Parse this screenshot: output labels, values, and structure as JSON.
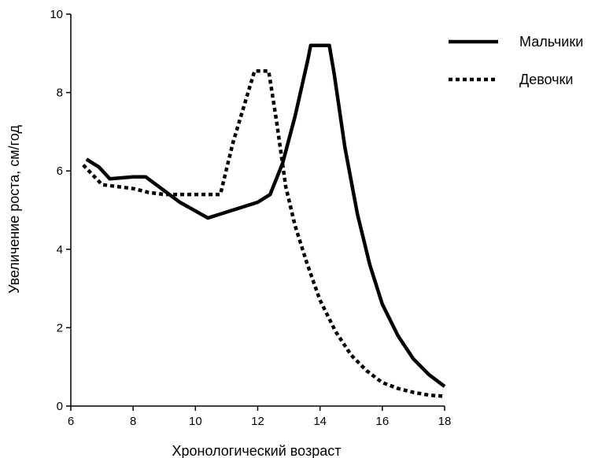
{
  "chart_data": {
    "type": "line",
    "xlabel": "Хронологический возраст",
    "ylabel": "Увеличение роста, см/год",
    "xlim": [
      6,
      18
    ],
    "ylim": [
      0,
      10
    ],
    "xticks": [
      6,
      8,
      10,
      12,
      14,
      16,
      18
    ],
    "yticks": [
      0,
      2,
      4,
      6,
      8,
      10
    ],
    "grid": false,
    "legend_position": "top-right",
    "series": [
      {
        "name": "Мальчики",
        "style": "solid",
        "color": "#000000",
        "x": [
          6.5,
          6.9,
          7.25,
          8.0,
          8.4,
          9.5,
          10.4,
          11.0,
          12.0,
          12.4,
          12.8,
          13.2,
          13.6,
          13.7,
          14.3,
          14.45,
          14.8,
          15.2,
          15.6,
          16.0,
          16.5,
          17.0,
          17.5,
          18.0
        ],
        "y": [
          6.3,
          6.1,
          5.8,
          5.85,
          5.85,
          5.2,
          4.8,
          4.95,
          5.2,
          5.4,
          6.2,
          7.4,
          8.8,
          9.2,
          9.2,
          8.5,
          6.6,
          4.9,
          3.6,
          2.6,
          1.8,
          1.2,
          0.8,
          0.5
        ]
      },
      {
        "name": "Девочки",
        "style": "dotted",
        "color": "#000000",
        "x": [
          6.4,
          7.0,
          7.5,
          8.0,
          8.5,
          9.0,
          10.0,
          10.8,
          11.2,
          11.5,
          11.9,
          12.35,
          12.6,
          12.9,
          13.2,
          13.6,
          14.0,
          14.5,
          15.0,
          15.5,
          16.0,
          16.5,
          17.0,
          17.5,
          18.0
        ],
        "y": [
          6.15,
          5.65,
          5.6,
          5.55,
          5.45,
          5.4,
          5.4,
          5.4,
          6.7,
          7.5,
          8.55,
          8.55,
          7.3,
          5.6,
          4.6,
          3.6,
          2.7,
          1.9,
          1.3,
          0.9,
          0.6,
          0.45,
          0.35,
          0.28,
          0.25
        ]
      }
    ]
  }
}
